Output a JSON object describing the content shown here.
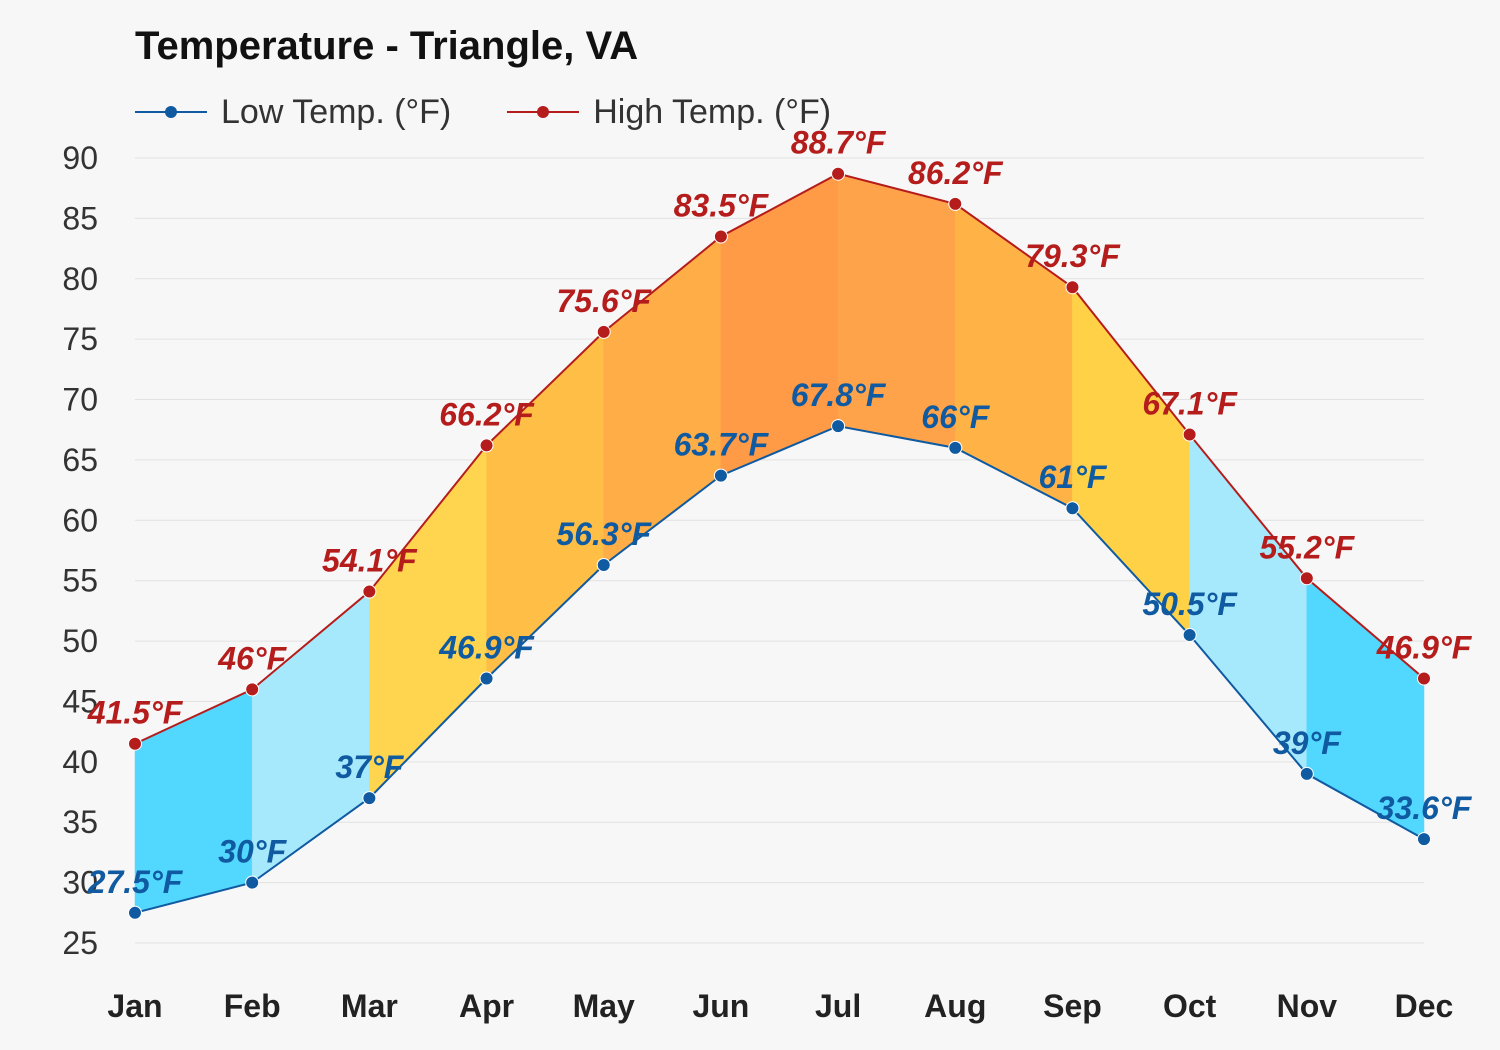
{
  "chart_data": {
    "type": "line",
    "title": "Temperature - Triangle, VA",
    "categories": [
      "Jan",
      "Feb",
      "Mar",
      "Apr",
      "May",
      "Jun",
      "Jul",
      "Aug",
      "Sep",
      "Oct",
      "Nov",
      "Dec"
    ],
    "series": [
      {
        "name": "Low Temp. (°F)",
        "color": "#0f5aa0",
        "values": [
          27.5,
          30,
          37,
          46.9,
          56.3,
          63.7,
          67.8,
          66,
          61,
          50.5,
          39,
          33.6
        ],
        "labels": [
          "27.5°F",
          "30°F",
          "37°F",
          "46.9°F",
          "56.3°F",
          "63.7°F",
          "67.8°F",
          "66°F",
          "61°F",
          "50.5°F",
          "39°F",
          "33.6°F"
        ]
      },
      {
        "name": "High Temp. (°F)",
        "color": "#b51c1c",
        "values": [
          41.5,
          46,
          54.1,
          66.2,
          75.6,
          83.5,
          88.7,
          86.2,
          79.3,
          67.1,
          55.2,
          46.9
        ],
        "labels": [
          "41.5°F",
          "46°F",
          "54.1°F",
          "66.2°F",
          "75.6°F",
          "83.5°F",
          "88.7°F",
          "86.2°F",
          "79.3°F",
          "67.1°F",
          "55.2°F",
          "46.9°F"
        ]
      }
    ],
    "ylim": [
      25,
      90
    ],
    "yticks": [
      "25",
      "30",
      "35",
      "40",
      "45",
      "50",
      "55",
      "60",
      "65",
      "70",
      "75",
      "80",
      "85",
      "90"
    ],
    "grid": true,
    "legend_position": "top-left",
    "band_colors": [
      "#52d7ff",
      "#a6e8fc",
      "#ffd54f",
      "#ffbf47",
      "#ffad47",
      "#ff9a47",
      "#ffa34a",
      "#ffb347",
      "#ffd147",
      "#a6e8fc",
      "#52d7ff"
    ]
  }
}
